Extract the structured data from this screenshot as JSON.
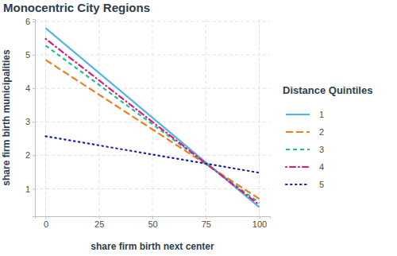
{
  "chart_data": {
    "type": "line",
    "title": "Monocentric City Regions",
    "x_label": "share firm birth next center",
    "y_label": "share firm birth municipalities",
    "legend_title": "Distance Quintiles",
    "legend": "right",
    "grid": true,
    "x": [
      0,
      100
    ],
    "xlim": [
      -5,
      105
    ],
    "xticks": [
      0,
      25,
      50,
      75,
      100
    ],
    "ylim": [
      0.18,
      6.07
    ],
    "yticks": [
      1,
      2,
      3,
      4,
      5,
      6
    ],
    "series": [
      {
        "name": "1",
        "color": "#56B4E9",
        "line_style": "solid",
        "values": [
          5.8,
          0.45
        ]
      },
      {
        "name": "2",
        "color": "#E8801E",
        "line_style": "longdash",
        "values": [
          4.85,
          0.7
        ]
      },
      {
        "name": "3",
        "color": "#1FC08E",
        "line_style": "dashed",
        "values": [
          5.28,
          0.58
        ]
      },
      {
        "name": "4",
        "color": "#E0177F",
        "line_style": "dotdash",
        "values": [
          5.48,
          0.52
        ]
      },
      {
        "name": "5",
        "color": "#1A22A8",
        "line_style": "dotted",
        "values": [
          2.57,
          1.48
        ]
      }
    ]
  }
}
